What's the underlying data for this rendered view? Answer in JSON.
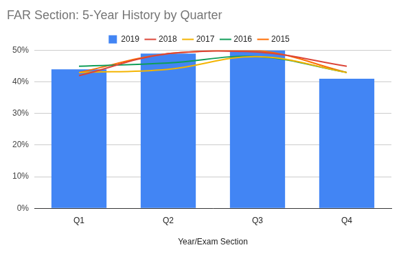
{
  "chart_data": {
    "type": "bar",
    "title": "FAR Section: 5-Year History by Quarter",
    "x_label": "Year/Exam Section",
    "categories": [
      "Q1",
      "Q2",
      "Q3",
      "Q4"
    ],
    "series": [
      {
        "name": "2019",
        "type": "bar",
        "color": "#4285f4",
        "values": [
          44,
          49,
          50,
          41
        ]
      },
      {
        "name": "2018",
        "type": "line",
        "color": "#db4437",
        "marker": "none",
        "line_style": "solid",
        "values": [
          42,
          49,
          49.5,
          45
        ]
      },
      {
        "name": "2017",
        "type": "line",
        "color": "#f4b400",
        "marker": "none",
        "line_style": "solid",
        "values": [
          43,
          44,
          48,
          43
        ]
      },
      {
        "name": "2016",
        "type": "line",
        "color": "#0f9d58",
        "marker": "none",
        "line_style": "solid",
        "values": [
          45,
          46,
          48,
          43
        ]
      },
      {
        "name": "2015",
        "type": "line",
        "color": "#ff6d01",
        "marker": "none",
        "line_style": "solid",
        "values": [
          43,
          49,
          50,
          43
        ]
      }
    ],
    "ylim": [
      0,
      50
    ],
    "yticks": [
      {
        "value": 0,
        "label": "0%"
      },
      {
        "value": 10,
        "label": "10%"
      },
      {
        "value": 20,
        "label": "20%"
      },
      {
        "value": 30,
        "label": "30%"
      },
      {
        "value": 40,
        "label": "40%"
      },
      {
        "value": 50,
        "label": "50%"
      }
    ],
    "grid": true,
    "legend": "top"
  }
}
